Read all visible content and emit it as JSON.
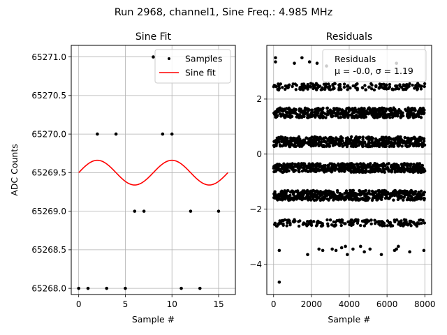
{
  "figure": {
    "suptitle": "Run 2968, channel1, Sine Freq.: 4.985 MHz"
  },
  "chart_data": [
    {
      "type": "scatter",
      "title": "Sine Fit",
      "xlabel": "Sample #",
      "ylabel": "ADC Counts",
      "xlim": [
        -0.8,
        16.8
      ],
      "ylim": [
        65267.92,
        65271.15
      ],
      "xticks": [
        0,
        5,
        10,
        15
      ],
      "xtick_labels": [
        "0",
        "5",
        "10",
        "15"
      ],
      "yticks": [
        65268.0,
        65268.5,
        65269.0,
        65269.5,
        65270.0,
        65270.5,
        65271.0
      ],
      "ytick_labels": [
        "65268.0",
        "65268.5",
        "65269.0",
        "65269.5",
        "65270.0",
        "65270.5",
        "65271.0"
      ],
      "grid": true,
      "legend_position": "top-right",
      "series": [
        {
          "name": "Samples",
          "type": "scatter",
          "color": "#000000",
          "x": [
            0,
            1,
            2,
            3,
            4,
            5,
            6,
            7,
            8,
            9,
            10,
            11,
            12,
            13,
            14,
            15
          ],
          "y": [
            65268,
            65268,
            65270,
            65268,
            65270,
            65268,
            65269,
            65269,
            65271,
            65270,
            65270,
            65268,
            65269,
            65268,
            65271,
            65269
          ]
        },
        {
          "name": "Sine fit",
          "type": "line",
          "color": "#ff0000",
          "model": {
            "offset": 65269.5,
            "amplitude": 0.16,
            "period": 8.0,
            "phase_shift": 0
          },
          "x_range": [
            0,
            16
          ]
        }
      ]
    },
    {
      "type": "scatter",
      "title": "Residuals",
      "xlabel": "Sample #",
      "ylabel": "",
      "xlim": [
        -360,
        8360
      ],
      "ylim": [
        -5.1,
        3.95
      ],
      "xticks": [
        0,
        2000,
        4000,
        6000,
        8000
      ],
      "xtick_labels": [
        "0",
        "2000",
        "4000",
        "6000",
        "8000"
      ],
      "yticks": [
        -4,
        -2,
        0,
        2
      ],
      "ytick_labels": [
        "−4",
        "−2",
        "0",
        "2"
      ],
      "grid": true,
      "legend_position": "top-right",
      "legend_title": "Residuals",
      "legend_text": "μ = -0.0, σ = 1.19",
      "color": "#000000",
      "bands": [
        {
          "center": 1.5,
          "spread": 0.18,
          "density": "dense"
        },
        {
          "center": 0.45,
          "spread": 0.18,
          "density": "dense"
        },
        {
          "center": -0.5,
          "spread": 0.16,
          "density": "dense"
        },
        {
          "center": -1.5,
          "spread": 0.18,
          "density": "dense"
        },
        {
          "center": 2.45,
          "spread": 0.12,
          "density": "medium"
        },
        {
          "center": -2.5,
          "spread": 0.12,
          "density": "medium"
        }
      ],
      "outliers": [
        {
          "x": 100,
          "y": 3.5
        },
        {
          "x": 100,
          "y": 3.35
        },
        {
          "x": 1100,
          "y": 3.3
        },
        {
          "x": 1500,
          "y": 3.5
        },
        {
          "x": 1900,
          "y": 3.35
        },
        {
          "x": 2300,
          "y": 3.3
        },
        {
          "x": 2800,
          "y": 3.2
        },
        {
          "x": 6500,
          "y": 3.3
        },
        {
          "x": 300,
          "y": -3.5
        },
        {
          "x": 300,
          "y": -4.65
        },
        {
          "x": 1800,
          "y": -3.65
        },
        {
          "x": 2400,
          "y": -3.45
        },
        {
          "x": 2600,
          "y": -3.5
        },
        {
          "x": 3100,
          "y": -3.45
        },
        {
          "x": 3300,
          "y": -3.5
        },
        {
          "x": 3600,
          "y": -3.4
        },
        {
          "x": 3800,
          "y": -3.35
        },
        {
          "x": 3900,
          "y": -3.65
        },
        {
          "x": 4200,
          "y": -3.45
        },
        {
          "x": 4600,
          "y": -3.35
        },
        {
          "x": 4800,
          "y": -3.55
        },
        {
          "x": 5100,
          "y": -3.45
        },
        {
          "x": 5700,
          "y": -3.65
        },
        {
          "x": 6400,
          "y": -3.5
        },
        {
          "x": 6500,
          "y": -3.45
        },
        {
          "x": 6600,
          "y": -3.35
        },
        {
          "x": 7200,
          "y": -3.55
        },
        {
          "x": 7950,
          "y": -3.5
        }
      ]
    }
  ]
}
